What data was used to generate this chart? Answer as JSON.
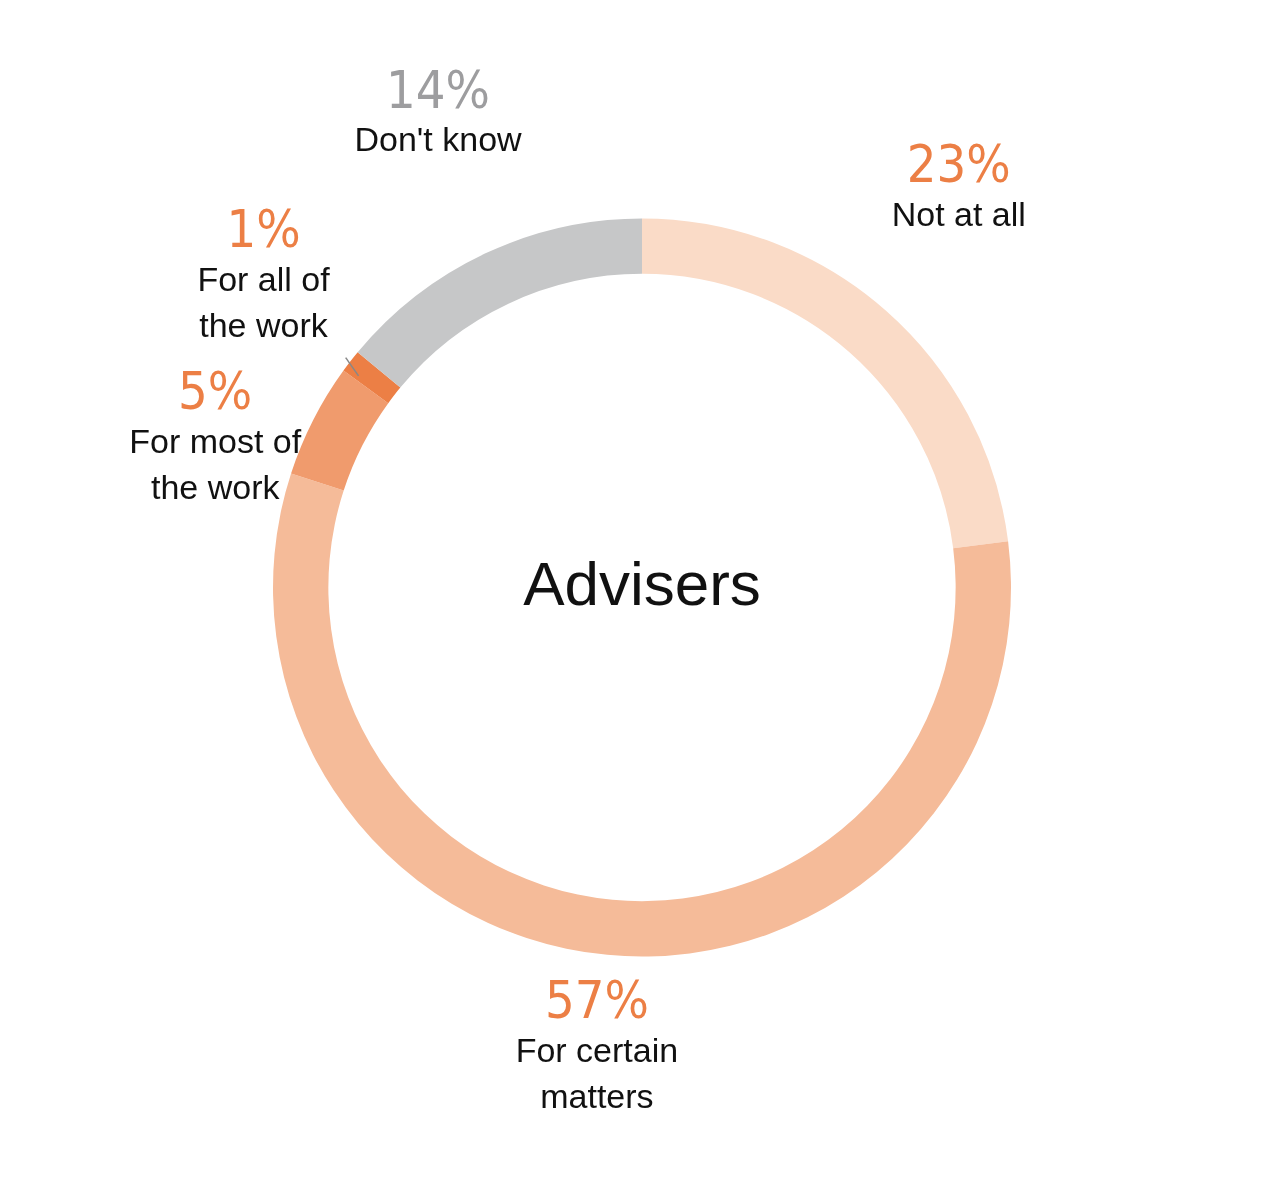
{
  "chart_data": {
    "type": "donut",
    "title": "Advisers",
    "categories": [
      "Not at all",
      "For certain matters",
      "For most of the work",
      "For all of the work",
      "Don't know"
    ],
    "values": [
      23,
      57,
      5,
      1,
      14
    ],
    "colors": [
      "#fadbc7",
      "#f5bb99",
      "#f09b6d",
      "#ec7f45",
      "#c6c7c8"
    ],
    "value_labels": [
      "23%",
      "57%",
      "5%",
      "1%",
      "14%"
    ],
    "legend": false
  }
}
